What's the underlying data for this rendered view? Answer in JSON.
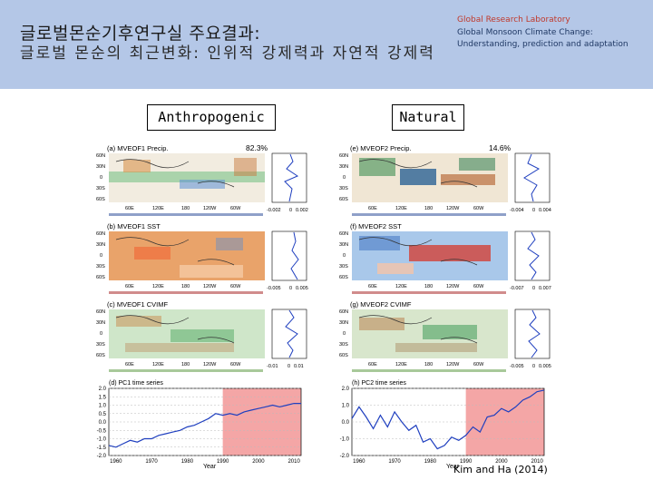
{
  "header": {
    "title_line1": "글로벌몬순기후연구실 주요결과:",
    "title_line2": "글로벌 몬순의 최근변화: 인위적 강제력과 자연적 강제력",
    "lab_name": "Global Research Laboratory",
    "project_line1": "Global Monsoon Climate Change:",
    "project_line2": "Understanding, prediction and adaptation"
  },
  "labels": {
    "anthropogenic": "Anthropogenic",
    "natural": "Natural"
  },
  "left": {
    "panel_a": {
      "title": "(a) MVEOF1 Precip.",
      "pct": "82.3%",
      "lons": [
        "60E",
        "120E",
        "180",
        "120W",
        "60W"
      ],
      "lats": [
        "60N",
        "30N",
        "0",
        "30S",
        "60S"
      ],
      "side_ticks": [
        "-0.002",
        "0",
        "0.002"
      ]
    },
    "panel_b": {
      "title": "(b) MVEOF1 SST",
      "lons": [
        "60E",
        "120E",
        "180",
        "120W",
        "60W"
      ],
      "lats": [
        "60N",
        "30N",
        "0",
        "30S",
        "60S"
      ],
      "side_ticks": [
        "-0.005",
        "0",
        "0.005"
      ]
    },
    "panel_c": {
      "title": "(c) MVEOF1 CVIMF",
      "lons": [
        "60E",
        "120E",
        "180",
        "120W",
        "60W"
      ],
      "lats": [
        "60N",
        "30N",
        "0",
        "30S",
        "60S"
      ],
      "side_ticks": [
        "-0.01",
        "0",
        "0.01"
      ]
    },
    "ts": {
      "title": "(d) PC1 time series",
      "yticks": [
        "2.0",
        "1.5",
        "1.0",
        "0.5",
        "0.0",
        "-0.5",
        "-1.0",
        "-1.5",
        "-2.0"
      ],
      "xticks": [
        "1960",
        "1970",
        "1980",
        "1990",
        "2000",
        "2010"
      ],
      "xlabel": "Year"
    }
  },
  "right": {
    "panel_e": {
      "title": "(e) MVEOF2 Precip.",
      "pct": "14.6%",
      "lons": [
        "60E",
        "120E",
        "180",
        "120W",
        "60W"
      ],
      "lats": [
        "60N",
        "30N",
        "0",
        "30S",
        "60S"
      ],
      "side_ticks": [
        "-0.004",
        "0",
        "0.004"
      ]
    },
    "panel_f": {
      "title": "(f) MVEOF2 SST",
      "lons": [
        "60E",
        "120E",
        "180",
        "120W",
        "60W"
      ],
      "lats": [
        "60N",
        "30N",
        "0",
        "30S",
        "60S"
      ],
      "side_ticks": [
        "-0.007",
        "0",
        "0.007"
      ]
    },
    "panel_g": {
      "title": "(g) MVEOF2 CVIMF",
      "lons": [
        "60E",
        "120E",
        "180",
        "120W",
        "60W"
      ],
      "lats": [
        "60N",
        "30N",
        "0",
        "30S",
        "60S"
      ],
      "side_ticks": [
        "-0.005",
        "0",
        "0.005"
      ]
    },
    "ts": {
      "title": "(h) PC2 time series",
      "yticks": [
        "2.0",
        "1.0",
        "0.0",
        "-1.0",
        "-2.0"
      ],
      "xticks": [
        "1960",
        "1970",
        "1980",
        "1990",
        "2000",
        "2010"
      ],
      "xlabel": "Year"
    }
  },
  "citation": "Kim and Ha (2014)",
  "colors": {
    "header_bg": "#b4c7e7",
    "highlight": "#f4a6a6",
    "series": "#1f3fbf"
  },
  "chart_data": [
    {
      "type": "line",
      "title": "(d) PC1 time series",
      "xlabel": "Year",
      "ylabel": "",
      "ylim": [
        -2.0,
        2.0
      ],
      "xlim": [
        1958,
        2012
      ],
      "highlight_range": [
        1990,
        2012
      ],
      "series": [
        {
          "name": "PC1",
          "x": [
            1958,
            1960,
            1962,
            1964,
            1966,
            1968,
            1970,
            1972,
            1974,
            1976,
            1978,
            1980,
            1982,
            1984,
            1986,
            1988,
            1990,
            1992,
            1994,
            1996,
            1998,
            2000,
            2002,
            2004,
            2006,
            2008,
            2010,
            2012
          ],
          "values": [
            -1.4,
            -1.5,
            -1.3,
            -1.1,
            -1.2,
            -1.0,
            -1.0,
            -0.8,
            -0.7,
            -0.6,
            -0.5,
            -0.3,
            -0.2,
            0.0,
            0.2,
            0.5,
            0.4,
            0.5,
            0.4,
            0.6,
            0.7,
            0.8,
            0.9,
            1.0,
            0.9,
            1.0,
            1.1,
            1.1
          ]
        }
      ]
    },
    {
      "type": "line",
      "title": "(h) PC2 time series",
      "xlabel": "Year",
      "ylabel": "",
      "ylim": [
        -2.0,
        2.0
      ],
      "xlim": [
        1958,
        2012
      ],
      "highlight_range": [
        1990,
        2012
      ],
      "series": [
        {
          "name": "PC2",
          "x": [
            1958,
            1960,
            1962,
            1964,
            1966,
            1968,
            1970,
            1972,
            1974,
            1976,
            1978,
            1980,
            1982,
            1984,
            1986,
            1988,
            1990,
            1992,
            1994,
            1996,
            1998,
            2000,
            2002,
            2004,
            2006,
            2008,
            2010,
            2012
          ],
          "values": [
            0.2,
            0.9,
            0.3,
            -0.4,
            0.4,
            -0.3,
            0.6,
            0.0,
            -0.5,
            -0.2,
            -1.2,
            -1.0,
            -1.6,
            -1.4,
            -0.9,
            -1.1,
            -0.8,
            -0.3,
            -0.6,
            0.3,
            0.4,
            0.8,
            0.6,
            0.9,
            1.3,
            1.5,
            1.8,
            1.9
          ]
        }
      ]
    }
  ]
}
